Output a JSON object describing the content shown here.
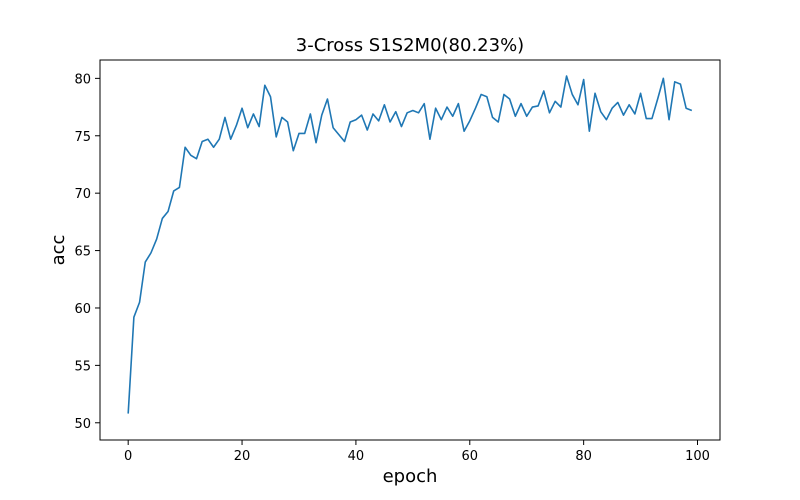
{
  "chart_data": {
    "type": "line",
    "title": "3-Cross S1S2M0(80.23%)",
    "xlabel": "epoch",
    "ylabel": "acc",
    "xlim": [
      -4.95,
      103.95
    ],
    "ylim": [
      48.5,
      81.6
    ],
    "xticks": [
      0,
      20,
      40,
      60,
      80,
      100
    ],
    "yticks": [
      50,
      55,
      60,
      65,
      70,
      75,
      80
    ],
    "grid": false,
    "legend": "none",
    "series": [
      {
        "color": "#1f77b4",
        "x": [
          0,
          1,
          2,
          3,
          4,
          5,
          6,
          7,
          8,
          9,
          10,
          11,
          12,
          13,
          14,
          15,
          16,
          17,
          18,
          19,
          20,
          21,
          22,
          23,
          24,
          25,
          26,
          27,
          28,
          29,
          30,
          31,
          32,
          33,
          34,
          35,
          36,
          37,
          38,
          39,
          40,
          41,
          42,
          43,
          44,
          45,
          46,
          47,
          48,
          49,
          50,
          51,
          52,
          53,
          54,
          55,
          56,
          57,
          58,
          59,
          60,
          61,
          62,
          63,
          64,
          65,
          66,
          67,
          68,
          69,
          70,
          71,
          72,
          73,
          74,
          75,
          76,
          77,
          78,
          79,
          80,
          81,
          82,
          83,
          84,
          85,
          86,
          87,
          88,
          89,
          90,
          91,
          92,
          93,
          94,
          95,
          96,
          97,
          98,
          99
        ],
        "values": [
          50.8,
          59.2,
          60.5,
          64.0,
          64.8,
          66.0,
          67.8,
          68.4,
          70.2,
          70.5,
          74.0,
          73.3,
          73.0,
          74.5,
          74.7,
          74.0,
          74.7,
          76.6,
          74.7,
          75.9,
          77.4,
          75.7,
          76.9,
          75.8,
          79.4,
          78.4,
          74.9,
          76.6,
          76.2,
          73.7,
          75.2,
          75.2,
          76.9,
          74.4,
          76.8,
          78.2,
          75.7,
          75.1,
          74.5,
          76.2,
          76.4,
          76.8,
          75.5,
          76.9,
          76.3,
          77.7,
          76.2,
          77.1,
          75.8,
          77.0,
          77.2,
          77.0,
          77.8,
          74.7,
          77.4,
          76.4,
          77.5,
          76.7,
          77.8,
          75.4,
          76.3,
          77.4,
          78.6,
          78.4,
          76.6,
          76.2,
          78.6,
          78.2,
          76.7,
          77.8,
          76.7,
          77.5,
          77.6,
          78.9,
          77.0,
          78.0,
          77.5,
          80.2,
          78.6,
          77.7,
          79.9,
          75.4,
          78.7,
          77.1,
          76.4,
          77.4,
          77.9,
          76.8,
          77.7,
          76.9,
          78.7,
          76.5,
          76.5,
          78.2,
          80.0,
          76.4,
          79.7,
          79.5,
          77.4,
          77.2
        ]
      }
    ]
  }
}
